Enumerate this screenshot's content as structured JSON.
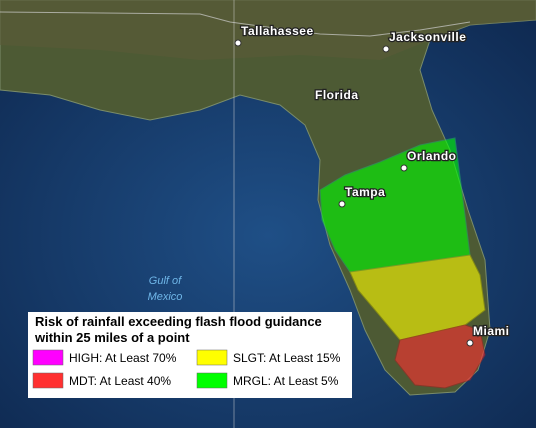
{
  "map": {
    "places": [
      {
        "label": "Tallahassee",
        "dot": true
      },
      {
        "label": "Jacksonville",
        "dot": true
      },
      {
        "label": "Florida",
        "dot": false
      },
      {
        "label": "Orlando",
        "dot": true
      },
      {
        "label": "Tampa",
        "dot": true
      },
      {
        "label": "Miami",
        "dot": true
      }
    ],
    "water_label": [
      "Gulf of",
      "Mexico"
    ],
    "legend": {
      "title_lines": [
        "Risk of rainfall exceeding flash flood guidance",
        "within 25 miles of a point"
      ],
      "items": [
        {
          "label": "HIGH: At Least 70%",
          "color": "#ff00ff"
        },
        {
          "label": "SLGT: At Least 15%",
          "color": "#ffff00"
        },
        {
          "label": "MDT: At Least 40%",
          "color": "#ff3030"
        },
        {
          "label": "MRGL: At Least 5%",
          "color": "#00ff00"
        }
      ]
    }
  }
}
